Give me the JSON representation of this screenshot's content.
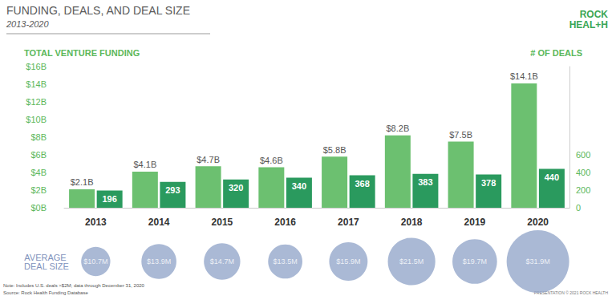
{
  "chart_data": {
    "type": "bar",
    "title": "FUNDING, DEALS, AND DEAL SIZE",
    "subtitle": "2013-2020",
    "y_label": "TOTAL VENTURE FUNDING",
    "y2_label": "# OF DEALS",
    "categories": [
      "2013",
      "2014",
      "2015",
      "2016",
      "2017",
      "2018",
      "2019",
      "2020"
    ],
    "series": [
      {
        "color": "#6cc070",
        "values": [
          2.1,
          4.1,
          4.7,
          4.6,
          5.8,
          8.2,
          7.5,
          14.1
        ],
        "value_labels": [
          "$2.1B",
          "$4.1B",
          "$4.7B",
          "$4.6B",
          "$5.8B",
          "$8.2B",
          "$7.5B",
          "$14.1B"
        ]
      },
      {
        "color": "#2a9a5e",
        "axis": "y2",
        "values": [
          196,
          293,
          320,
          340,
          368,
          383,
          378,
          440
        ]
      }
    ],
    "ylim": [
      0,
      16
    ],
    "yticks": [
      {
        "value": 0,
        "label": "$0B"
      },
      {
        "value": 2,
        "label": "$2B"
      },
      {
        "value": 4,
        "label": "$4B"
      },
      {
        "value": 6,
        "label": "$6B"
      },
      {
        "value": 8,
        "label": "$8B"
      },
      {
        "value": 10,
        "label": "$10B"
      },
      {
        "value": 12,
        "label": "$12B"
      },
      {
        "value": 14,
        "label": "$14B"
      },
      {
        "value": 16,
        "label": "$16B"
      }
    ],
    "y2lim": [
      0,
      1600
    ],
    "y2ticks": [
      0,
      200,
      400,
      600
    ],
    "grid": false,
    "data_labels": true,
    "average_deal_size": {
      "label": "AVERAGE DEAL SIZE",
      "color": "#95a8cb",
      "values": [
        10.7,
        13.9,
        14.7,
        13.5,
        15.9,
        21.5,
        19.7,
        31.9
      ],
      "value_labels": [
        "$10.7M",
        "$13.9M",
        "$14.7M",
        "$13.5M",
        "$15.9M",
        "$21.5M",
        "$19.7M",
        "$31.9M"
      ]
    },
    "note": "Note: Includes U.S. deals >$2M; data through December 31, 2020",
    "source": "Source: Rock Health Funding Database",
    "footer": "PRESENTATION © 2021 ROCK HEALTH",
    "logo": [
      "ROCK",
      "HEAL+H"
    ]
  }
}
